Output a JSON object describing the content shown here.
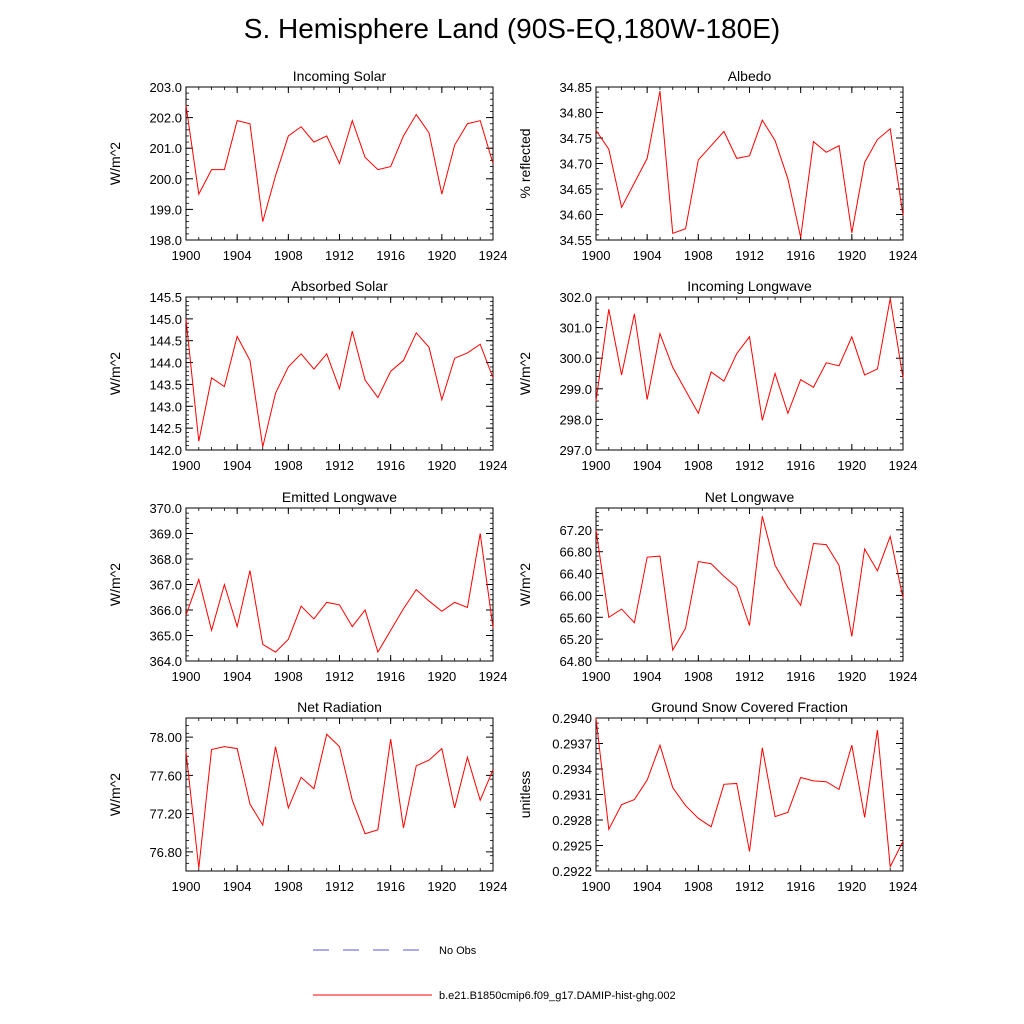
{
  "title": "S. Hemisphere Land (90S-EQ,180W-180E)",
  "legend": [
    {
      "label": "No Obs",
      "color": "#5a5ad6",
      "dash": "dashed"
    },
    {
      "label": "b.e21.B1850cmip6.f09_g17.DAMIP-hist-ghg.002",
      "color": "#ff0000",
      "dash": "solid"
    }
  ],
  "chart_data": [
    {
      "type": "line",
      "title": "Incoming Solar",
      "ylabel": "W/m^2",
      "xlim": [
        1900,
        1924
      ],
      "x_ticks": [
        "1900",
        "1904",
        "1908",
        "1912",
        "1916",
        "1920",
        "1924"
      ],
      "ylim": [
        198.0,
        203.0
      ],
      "y_ticks": [
        "198.0",
        "199.0",
        "200.0",
        "201.0",
        "202.0",
        "203.0"
      ],
      "legend_position": "bottom",
      "series": [
        {
          "name": "b.e21.B1850cmip6.f09_g17.DAMIP-hist-ghg.002",
          "color": "#ff0000",
          "x": [
            1900,
            1901,
            1902,
            1903,
            1904,
            1905,
            1906,
            1907,
            1908,
            1909,
            1910,
            1911,
            1912,
            1913,
            1914,
            1915,
            1916,
            1917,
            1918,
            1919,
            1920,
            1921,
            1922,
            1923,
            1924
          ],
          "y": [
            202.4,
            199.5,
            200.3,
            200.3,
            201.9,
            201.8,
            198.6,
            200.1,
            201.4,
            201.7,
            201.2,
            201.4,
            200.5,
            201.9,
            200.7,
            200.3,
            200.4,
            201.4,
            202.1,
            201.5,
            199.5,
            201.1,
            201.8,
            201.9,
            200.5
          ]
        }
      ]
    },
    {
      "type": "line",
      "title": "Albedo",
      "ylabel": "% reflected",
      "xlim": [
        1900,
        1924
      ],
      "x_ticks": [
        "1900",
        "1904",
        "1908",
        "1912",
        "1916",
        "1920",
        "1924"
      ],
      "ylim": [
        34.55,
        34.85
      ],
      "y_ticks": [
        "34.55",
        "34.60",
        "34.65",
        "34.70",
        "34.75",
        "34.80",
        "34.85"
      ],
      "legend_position": "bottom",
      "series": [
        {
          "name": "b.e21.B1850cmip6.f09_g17.DAMIP-hist-ghg.002",
          "color": "#ff0000",
          "x": [
            1900,
            1901,
            1902,
            1903,
            1904,
            1905,
            1906,
            1907,
            1908,
            1909,
            1910,
            1911,
            1912,
            1913,
            1914,
            1915,
            1916,
            1917,
            1918,
            1919,
            1920,
            1921,
            1922,
            1923,
            1924
          ],
          "y": [
            34.765,
            34.728,
            34.614,
            34.662,
            34.71,
            34.842,
            34.563,
            34.572,
            34.707,
            34.735,
            34.763,
            34.71,
            34.715,
            34.785,
            34.745,
            34.67,
            34.555,
            34.743,
            34.722,
            34.735,
            34.564,
            34.702,
            34.747,
            34.768,
            34.598
          ]
        }
      ]
    },
    {
      "type": "line",
      "title": "Absorbed Solar",
      "ylabel": "W/m^2",
      "xlim": [
        1900,
        1924
      ],
      "x_ticks": [
        "1900",
        "1904",
        "1908",
        "1912",
        "1916",
        "1920",
        "1924"
      ],
      "ylim": [
        142.0,
        145.5
      ],
      "y_ticks": [
        "142.0",
        "142.5",
        "143.0",
        "143.5",
        "144.0",
        "144.5",
        "145.0",
        "145.5"
      ],
      "legend_position": "bottom",
      "series": [
        {
          "name": "b.e21.B1850cmip6.f09_g17.DAMIP-hist-ghg.002",
          "color": "#ff0000",
          "x": [
            1900,
            1901,
            1902,
            1903,
            1904,
            1905,
            1906,
            1907,
            1908,
            1909,
            1910,
            1911,
            1912,
            1913,
            1914,
            1915,
            1916,
            1917,
            1918,
            1919,
            1920,
            1921,
            1922,
            1923,
            1924
          ],
          "y": [
            145.0,
            142.2,
            143.65,
            143.45,
            144.6,
            144.05,
            142.07,
            143.3,
            143.9,
            144.2,
            143.85,
            144.2,
            143.4,
            144.72,
            143.6,
            143.2,
            143.8,
            144.05,
            144.68,
            144.35,
            143.15,
            144.1,
            144.22,
            144.42,
            143.65
          ]
        }
      ]
    },
    {
      "type": "line",
      "title": "Incoming Longwave",
      "ylabel": "W/m^2",
      "xlim": [
        1900,
        1924
      ],
      "x_ticks": [
        "1900",
        "1904",
        "1908",
        "1912",
        "1916",
        "1920",
        "1924"
      ],
      "ylim": [
        297.0,
        302.0
      ],
      "y_ticks": [
        "297.0",
        "298.0",
        "299.0",
        "300.0",
        "301.0",
        "302.0"
      ],
      "legend_position": "bottom",
      "series": [
        {
          "name": "b.e21.B1850cmip6.f09_g17.DAMIP-hist-ghg.002",
          "color": "#ff0000",
          "x": [
            1900,
            1901,
            1902,
            1903,
            1904,
            1905,
            1906,
            1907,
            1908,
            1909,
            1910,
            1911,
            1912,
            1913,
            1914,
            1915,
            1916,
            1917,
            1918,
            1919,
            1920,
            1921,
            1922,
            1923,
            1924
          ],
          "y": [
            298.6,
            301.6,
            299.45,
            301.45,
            298.65,
            300.8,
            299.7,
            298.95,
            298.2,
            299.55,
            299.25,
            300.15,
            300.7,
            297.97,
            299.5,
            298.2,
            299.3,
            299.05,
            299.85,
            299.75,
            300.7,
            299.45,
            299.65,
            301.95,
            299.35
          ]
        }
      ]
    },
    {
      "type": "line",
      "title": "Emitted Longwave",
      "ylabel": "W/m^2",
      "xlim": [
        1900,
        1924
      ],
      "x_ticks": [
        "1900",
        "1904",
        "1908",
        "1912",
        "1916",
        "1920",
        "1924"
      ],
      "ylim": [
        364.0,
        370.0
      ],
      "y_ticks": [
        "364.0",
        "365.0",
        "366.0",
        "367.0",
        "368.0",
        "369.0",
        "370.0"
      ],
      "legend_position": "bottom",
      "series": [
        {
          "name": "b.e21.B1850cmip6.f09_g17.DAMIP-hist-ghg.002",
          "color": "#ff0000",
          "x": [
            1900,
            1901,
            1902,
            1903,
            1904,
            1905,
            1906,
            1907,
            1908,
            1909,
            1910,
            1911,
            1912,
            1913,
            1914,
            1915,
            1916,
            1917,
            1918,
            1919,
            1920,
            1921,
            1922,
            1923,
            1924
          ],
          "y": [
            365.8,
            367.2,
            365.2,
            367.0,
            365.35,
            367.55,
            364.65,
            364.35,
            364.85,
            366.15,
            365.65,
            366.3,
            366.2,
            365.35,
            366.0,
            364.35,
            365.2,
            366.05,
            366.8,
            366.35,
            365.95,
            366.3,
            366.1,
            369.0,
            365.3
          ]
        }
      ]
    },
    {
      "type": "line",
      "title": "Net Longwave",
      "ylabel": "W/m^2",
      "xlim": [
        1900,
        1924
      ],
      "x_ticks": [
        "1900",
        "1904",
        "1908",
        "1912",
        "1916",
        "1920",
        "1924"
      ],
      "ylim": [
        64.8,
        67.6
      ],
      "y_ticks": [
        "64.80",
        "65.20",
        "65.60",
        "66.00",
        "66.40",
        "66.80",
        "67.20"
      ],
      "legend_position": "bottom",
      "series": [
        {
          "name": "b.e21.B1850cmip6.f09_g17.DAMIP-hist-ghg.002",
          "color": "#ff0000",
          "x": [
            1900,
            1901,
            1902,
            1903,
            1904,
            1905,
            1906,
            1907,
            1908,
            1909,
            1910,
            1911,
            1912,
            1913,
            1914,
            1915,
            1916,
            1917,
            1918,
            1919,
            1920,
            1921,
            1922,
            1923,
            1924
          ],
          "y": [
            67.2,
            65.6,
            65.75,
            65.5,
            66.7,
            66.72,
            65.0,
            65.4,
            66.62,
            66.58,
            66.35,
            66.15,
            65.45,
            67.45,
            66.55,
            66.15,
            65.82,
            66.95,
            66.93,
            66.55,
            65.25,
            66.85,
            66.45,
            67.08,
            65.95
          ]
        }
      ]
    },
    {
      "type": "line",
      "title": "Net Radiation",
      "ylabel": "W/m^2",
      "xlim": [
        1900,
        1924
      ],
      "x_ticks": [
        "1900",
        "1904",
        "1908",
        "1912",
        "1916",
        "1920",
        "1924"
      ],
      "ylim": [
        76.6,
        78.2
      ],
      "y_ticks": [
        "76.80",
        "77.20",
        "77.60",
        "78.00"
      ],
      "legend_position": "bottom",
      "series": [
        {
          "name": "b.e21.B1850cmip6.f09_g17.DAMIP-hist-ghg.002",
          "color": "#ff0000",
          "x": [
            1900,
            1901,
            1902,
            1903,
            1904,
            1905,
            1906,
            1907,
            1908,
            1909,
            1910,
            1911,
            1912,
            1913,
            1914,
            1915,
            1916,
            1917,
            1918,
            1919,
            1920,
            1921,
            1922,
            1923,
            1924
          ],
          "y": [
            77.85,
            76.63,
            77.87,
            77.9,
            77.88,
            77.3,
            77.08,
            77.9,
            77.26,
            77.58,
            77.46,
            78.03,
            77.9,
            77.34,
            76.99,
            77.03,
            77.98,
            77.05,
            77.7,
            77.76,
            77.88,
            77.26,
            77.79,
            77.34,
            77.66
          ]
        }
      ]
    },
    {
      "type": "line",
      "title": "Ground Snow Covered Fraction",
      "ylabel": "unitless",
      "xlim": [
        1900,
        1924
      ],
      "x_ticks": [
        "1900",
        "1904",
        "1908",
        "1912",
        "1916",
        "1920",
        "1924"
      ],
      "ylim": [
        0.2922,
        0.294
      ],
      "y_ticks": [
        "0.2922",
        "0.2925",
        "0.2928",
        "0.2931",
        "0.2934",
        "0.2937",
        "0.2940"
      ],
      "legend_position": "bottom",
      "series": [
        {
          "name": "b.e21.B1850cmip6.f09_g17.DAMIP-hist-ghg.002",
          "color": "#ff0000",
          "x": [
            1900,
            1901,
            1902,
            1903,
            1904,
            1905,
            1906,
            1907,
            1908,
            1909,
            1910,
            1911,
            1912,
            1913,
            1914,
            1915,
            1916,
            1917,
            1918,
            1919,
            1920,
            1921,
            1922,
            1923,
            1924
          ],
          "y": [
            0.294,
            0.29269,
            0.29298,
            0.29304,
            0.29327,
            0.29368,
            0.29318,
            0.29297,
            0.29282,
            0.29272,
            0.29322,
            0.29323,
            0.29243,
            0.29365,
            0.29284,
            0.29289,
            0.2933,
            0.29326,
            0.29325,
            0.29316,
            0.29368,
            0.29283,
            0.29386,
            0.29225,
            0.29255
          ]
        }
      ]
    }
  ]
}
